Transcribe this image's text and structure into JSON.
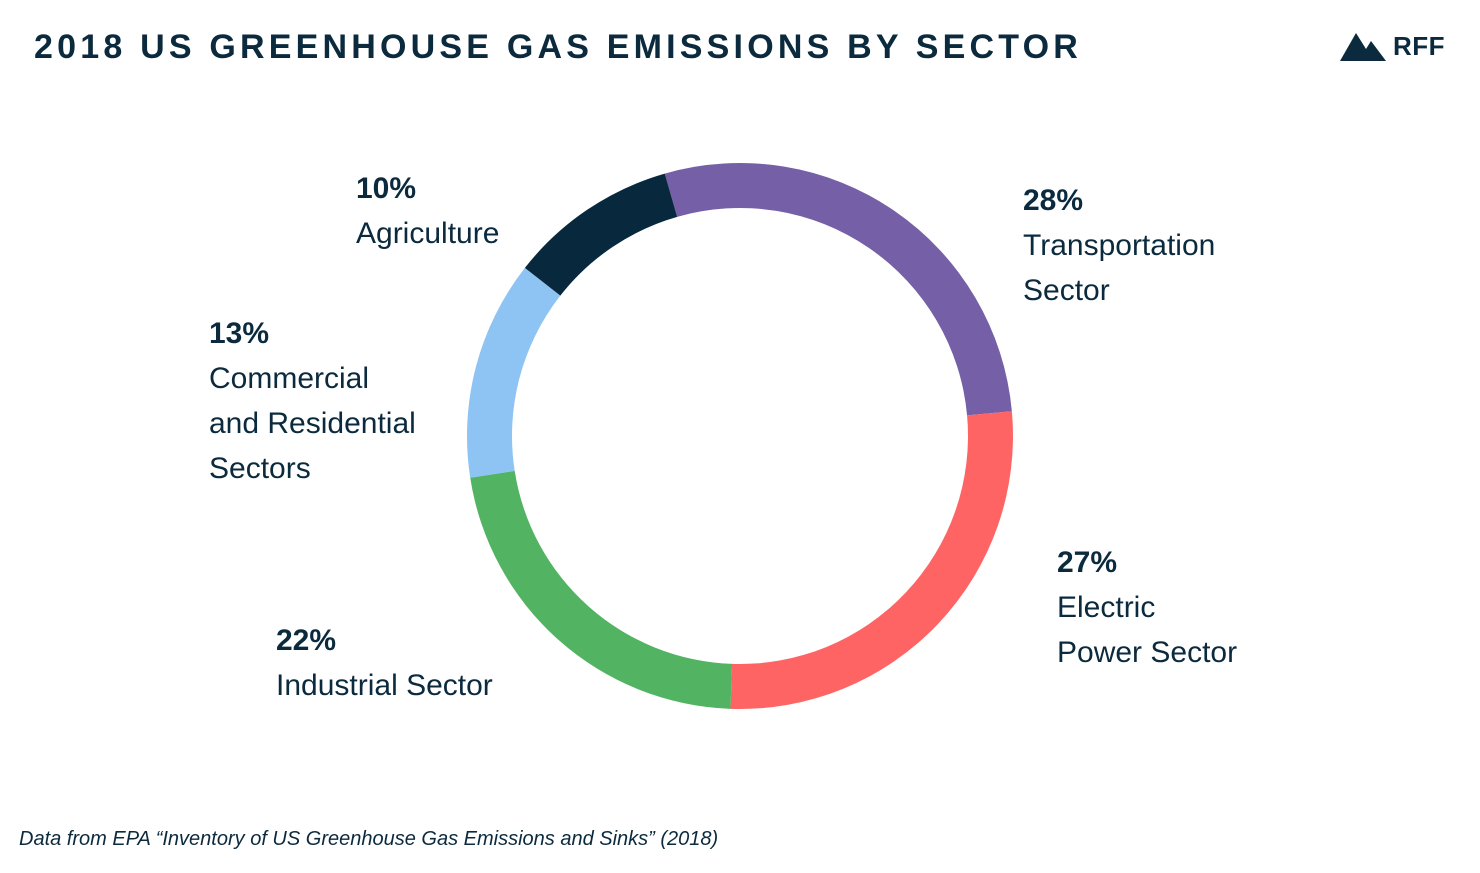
{
  "title": "2018 US GREENHOUSE GAS EMISSIONS BY SECTOR",
  "logo": {
    "text": "RFF",
    "icon": "mountain-logo-icon"
  },
  "source_note": "Data from EPA “Inventory of US Greenhouse Gas Emissions and Sinks” (2018)",
  "chart_data": {
    "type": "pie",
    "variant": "donut",
    "title": "2018 US GREENHOUSE GAS EMISSIONS BY SECTOR",
    "slices": [
      {
        "pct_label": "28%",
        "label_lines": [
          "Transportation",
          "Sector"
        ],
        "value": 28,
        "color": "#7560a8"
      },
      {
        "pct_label": "27%",
        "label_lines": [
          "Electric",
          "Power Sector"
        ],
        "value": 27,
        "color": "#ff6464"
      },
      {
        "pct_label": "22%",
        "label_lines": [
          "Industrial Sector"
        ],
        "value": 22,
        "color": "#52b362"
      },
      {
        "pct_label": "13%",
        "label_lines": [
          "Commercial",
          "and Residential",
          "Sectors"
        ],
        "value": 13,
        "color": "#8ec4f3"
      },
      {
        "pct_label": "10%",
        "label_lines": [
          "Agriculture"
        ],
        "value": 10,
        "color": "#07283d"
      }
    ]
  }
}
